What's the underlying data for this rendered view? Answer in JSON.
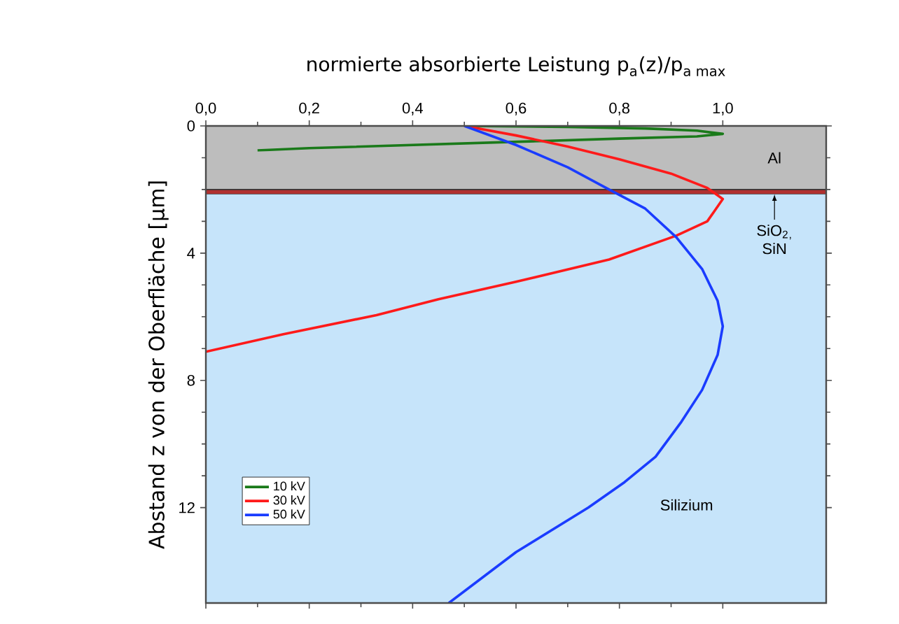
{
  "chart_data": {
    "type": "line",
    "title": "\\text{normierte absorbierte Leistung p}_{\\text{a}}\\text{(z)/p}_{\\text{a max}}",
    "ylabel": "Abstand z von der Oberfläche [µm]",
    "xlim": [
      0,
      1.2
    ],
    "ylim": [
      15,
      0
    ],
    "xticks": [
      {
        "value": 0,
        "label": "0,0"
      },
      {
        "value": 0.2,
        "label": "0,2"
      },
      {
        "value": 0.4,
        "label": "0,4"
      },
      {
        "value": 0.6,
        "label": "0,6"
      },
      {
        "value": 0.8,
        "label": "0,8"
      },
      {
        "value": 1.0,
        "label": "1,0"
      }
    ],
    "yticks": [
      0,
      4,
      8,
      12
    ],
    "legend": "bottom left",
    "grid": false,
    "marker": "none",
    "line_style": "solid",
    "bands": [
      {
        "axis": "y",
        "from": 0,
        "to": 2.0,
        "label": "Al",
        "color": "#bdbdbd"
      },
      {
        "axis": "y",
        "from": 2.0,
        "to": 2.15,
        "label": "SiO$_{2}$$_{,}$ SiN",
        "color": "#b03030"
      },
      {
        "axis": "y",
        "from": 2.15,
        "to": 15,
        "label": "Silizium",
        "color": "#c6e4fa"
      }
    ],
    "series": [
      {
        "name": "10 kV",
        "color": "#1a7a1a",
        "x": [
          0.51,
          0.7,
          0.85,
          0.95,
          1.0,
          0.95,
          0.8,
          0.6,
          0.4,
          0.2,
          0.1
        ],
        "values": [
          0,
          0.03,
          0.08,
          0.15,
          0.25,
          0.33,
          0.4,
          0.5,
          0.6,
          0.7,
          0.77
        ]
      },
      {
        "name": "30 kV",
        "color": "#ff1a1a",
        "x": [
          0.5,
          0.6,
          0.7,
          0.8,
          0.9,
          0.97,
          1.0,
          0.97,
          0.91,
          0.78,
          0.6,
          0.45,
          0.33,
          0.15,
          0.0
        ],
        "values": [
          0,
          0.3,
          0.65,
          1.05,
          1.5,
          1.95,
          2.3,
          3.0,
          3.45,
          4.2,
          4.9,
          5.45,
          5.95,
          6.55,
          7.1
        ]
      },
      {
        "name": "50 kV",
        "color": "#1a3cff",
        "x": [
          0.5,
          0.6,
          0.7,
          0.78,
          0.85,
          0.91,
          0.96,
          0.99,
          1.0,
          0.99,
          0.96,
          0.92,
          0.87,
          0.81,
          0.74,
          0.6,
          0.47
        ],
        "values": [
          0,
          0.6,
          1.3,
          2.0,
          2.6,
          3.5,
          4.5,
          5.5,
          6.3,
          7.2,
          8.3,
          9.3,
          10.4,
          11.2,
          12.0,
          13.4,
          15.0
        ]
      }
    ]
  }
}
